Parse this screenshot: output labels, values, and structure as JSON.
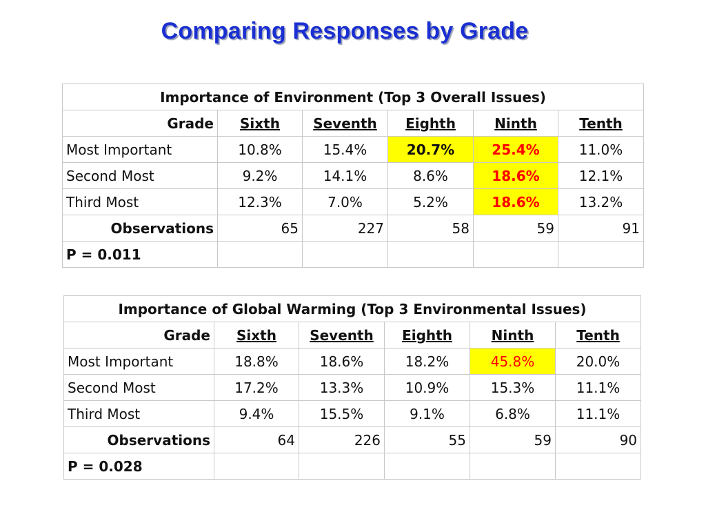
{
  "slide": {
    "title": "Comparing Responses by Grade"
  },
  "tables": [
    {
      "title": "Importance of Environment (Top 3 Overall Issues)",
      "grade_label": "Grade",
      "columns": [
        "Sixth",
        "Seventh",
        "Eighth",
        "Ninth",
        "Tenth"
      ],
      "rows": [
        {
          "label": "Most Important",
          "values": [
            "10.8%",
            "15.4%",
            "20.7%",
            "25.4%",
            "11.0%"
          ]
        },
        {
          "label": "Second Most",
          "values": [
            "9.2%",
            "14.1%",
            "8.6%",
            "18.6%",
            "12.1%"
          ]
        },
        {
          "label": "Third Most",
          "values": [
            "12.3%",
            "7.0%",
            "5.2%",
            "18.6%",
            "13.2%"
          ]
        }
      ],
      "observations_label": "Observations",
      "observations": [
        "65",
        "227",
        "58",
        "59",
        "91"
      ],
      "p_value": "P = 0.011",
      "highlights": [
        {
          "row": 0,
          "col": 2,
          "fill": "#ffff00",
          "text_color": "#111111",
          "bold": true
        },
        {
          "row": 0,
          "col": 3,
          "fill": "#ffff00",
          "text_color": "#ff0000",
          "bold": true
        },
        {
          "row": 1,
          "col": 3,
          "fill": "#ffff00",
          "text_color": "#ff0000",
          "bold": true
        },
        {
          "row": 2,
          "col": 3,
          "fill": "#ffff00",
          "text_color": "#ff0000",
          "bold": true
        }
      ]
    },
    {
      "title": "Importance of Global Warming (Top 3 Environmental Issues)",
      "grade_label": "Grade",
      "columns": [
        "Sixth",
        "Seventh",
        "Eighth",
        "Ninth",
        "Tenth"
      ],
      "rows": [
        {
          "label": "Most Important",
          "values": [
            "18.8%",
            "18.6%",
            "18.2%",
            "45.8%",
            "20.0%"
          ]
        },
        {
          "label": "Second Most",
          "values": [
            "17.2%",
            "13.3%",
            "10.9%",
            "15.3%",
            "11.1%"
          ]
        },
        {
          "label": "Third Most",
          "values": [
            "9.4%",
            "15.5%",
            "9.1%",
            "6.8%",
            "11.1%"
          ]
        }
      ],
      "observations_label": "Observations",
      "observations": [
        "64",
        "226",
        "55",
        "59",
        "90"
      ],
      "p_value": "P = 0.028",
      "highlights": [
        {
          "row": 0,
          "col": 3,
          "fill": "#ffff00",
          "text_color": "#ff0000",
          "bold": false
        }
      ]
    }
  ]
}
